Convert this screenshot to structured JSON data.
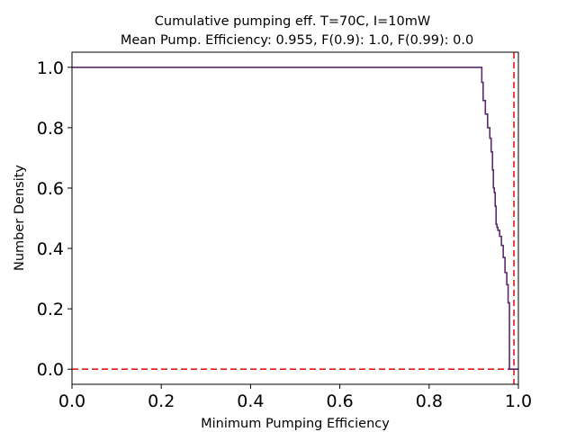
{
  "chart_data": {
    "type": "line",
    "title": "Cumulative pumping eff. T=70C, I=10mW",
    "subtitle": "Mean Pump. Efficiency: 0.955, F(0.9): 1.0, F(0.99): 0.0",
    "xlabel": "Minimum Pumping Efficiency",
    "ylabel": "Number Density",
    "xlim": [
      0.0,
      1.0
    ],
    "ylim": [
      -0.05,
      1.05
    ],
    "xticks": [
      0.0,
      0.2,
      0.4,
      0.6,
      0.8,
      1.0
    ],
    "xtick_labels": [
      "0.0",
      "0.2",
      "0.4",
      "0.6",
      "0.8",
      "1.0"
    ],
    "yticks": [
      0.0,
      0.2,
      0.4,
      0.6,
      0.8,
      1.0
    ],
    "ytick_labels": [
      "0.0",
      "0.2",
      "0.4",
      "0.6",
      "0.8",
      "1.0"
    ],
    "grid": false,
    "series": [
      {
        "color": "#5b2a6e",
        "style": "step",
        "x": [
          0.0,
          0.916,
          0.918,
          0.921,
          0.926,
          0.931,
          0.936,
          0.939,
          0.942,
          0.944,
          0.946,
          0.948,
          0.95,
          0.952,
          0.954,
          0.958,
          0.962,
          0.966,
          0.97,
          0.974,
          0.977,
          0.98,
          0.983,
          0.986,
          0.988,
          1.0
        ],
        "y": [
          1.0,
          1.0,
          0.95,
          0.89,
          0.845,
          0.8,
          0.765,
          0.72,
          0.66,
          0.6,
          0.585,
          0.54,
          0.48,
          0.47,
          0.46,
          0.44,
          0.41,
          0.37,
          0.32,
          0.28,
          0.22,
          0.0,
          0.0,
          0.0,
          0.0,
          0.0
        ]
      }
    ],
    "reference_lines": [
      {
        "orientation": "vertical",
        "x": 0.99,
        "color": "#e41a1c",
        "style": "dashed"
      },
      {
        "orientation": "horizontal",
        "y": 0.0,
        "color": "#e41a1c",
        "style": "dashed"
      }
    ]
  }
}
